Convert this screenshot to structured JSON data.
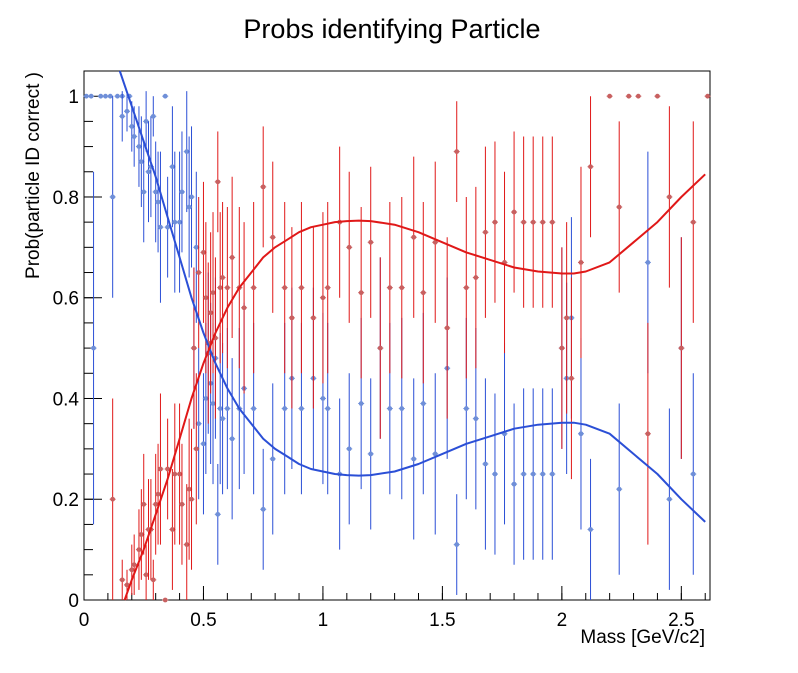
{
  "chart_data": {
    "type": "scatter",
    "title": "Probs identifying Particle",
    "xlabel": "Mass [GeV/c2]",
    "ylabel": "Prob(particle ID correct )",
    "xlim": [
      0,
      2.62
    ],
    "ylim": [
      0,
      1.05
    ],
    "x_ticks": [
      "0",
      "0.5",
      "1",
      "1.5",
      "2",
      "2.5"
    ],
    "y_ticks": [
      "0",
      "0.2",
      "0.4",
      "0.6",
      "0.8",
      "1"
    ],
    "grid": false,
    "legend": "none",
    "series": [
      {
        "color": "#2b4fd6",
        "marker_color": "#6f8fd8",
        "points": [
          {
            "x": 0.01,
            "y": 1.0,
            "err": 0.0
          },
          {
            "x": 0.03,
            "y": 1.0,
            "err": 0.0
          },
          {
            "x": 0.04,
            "y": 0.5,
            "err": 0.35
          },
          {
            "x": 0.07,
            "y": 1.0,
            "err": 0.0
          },
          {
            "x": 0.09,
            "y": 1.0,
            "err": 0.0
          },
          {
            "x": 0.11,
            "y": 1.0,
            "err": 0.0
          },
          {
            "x": 0.12,
            "y": 0.8,
            "err": 0.2
          },
          {
            "x": 0.14,
            "y": 1.0,
            "err": 0.0
          },
          {
            "x": 0.16,
            "y": 1.0,
            "err": 0.0
          },
          {
            "x": 0.16,
            "y": 0.96,
            "err": 0.05
          },
          {
            "x": 0.18,
            "y": 0.97,
            "err": 0.04
          },
          {
            "x": 0.19,
            "y": 1.0,
            "err": 0.0
          },
          {
            "x": 0.2,
            "y": 0.94,
            "err": 0.05
          },
          {
            "x": 0.21,
            "y": 0.92,
            "err": 0.06
          },
          {
            "x": 0.23,
            "y": 0.9,
            "err": 0.08
          },
          {
            "x": 0.24,
            "y": 0.87,
            "err": 0.09
          },
          {
            "x": 0.25,
            "y": 0.81,
            "err": 0.1
          },
          {
            "x": 0.26,
            "y": 0.95,
            "err": 0.06
          },
          {
            "x": 0.27,
            "y": 0.85,
            "err": 0.1
          },
          {
            "x": 0.28,
            "y": 0.86,
            "err": 0.1
          },
          {
            "x": 0.29,
            "y": 0.96,
            "err": 0.04
          },
          {
            "x": 0.3,
            "y": 0.81,
            "err": 0.1
          },
          {
            "x": 0.31,
            "y": 0.79,
            "err": 0.1
          },
          {
            "x": 0.32,
            "y": 0.74,
            "err": 0.15
          },
          {
            "x": 0.34,
            "y": 1.0,
            "err": 0.0
          },
          {
            "x": 0.35,
            "y": 0.74,
            "err": 0.1
          },
          {
            "x": 0.37,
            "y": 0.86,
            "err": 0.12
          },
          {
            "x": 0.38,
            "y": 0.75,
            "err": 0.14
          },
          {
            "x": 0.4,
            "y": 0.75,
            "err": 0.14
          },
          {
            "x": 0.41,
            "y": 0.81,
            "err": 0.12
          },
          {
            "x": 0.43,
            "y": 0.89,
            "err": 0.12
          },
          {
            "x": 0.45,
            "y": 0.8,
            "err": 0.14
          },
          {
            "x": 0.44,
            "y": 0.78,
            "err": 0.14
          },
          {
            "x": 0.46,
            "y": 0.5,
            "err": 0.16
          },
          {
            "x": 0.47,
            "y": 0.7,
            "err": 0.15
          },
          {
            "x": 0.48,
            "y": 0.35,
            "err": 0.15
          },
          {
            "x": 0.5,
            "y": 0.31,
            "err": 0.14
          },
          {
            "x": 0.51,
            "y": 0.4,
            "err": 0.15
          },
          {
            "x": 0.52,
            "y": 0.49,
            "err": 0.16
          },
          {
            "x": 0.53,
            "y": 0.43,
            "err": 0.16
          },
          {
            "x": 0.54,
            "y": 0.39,
            "err": 0.16
          },
          {
            "x": 0.55,
            "y": 0.48,
            "err": 0.16
          },
          {
            "x": 0.56,
            "y": 0.17,
            "err": 0.1
          },
          {
            "x": 0.57,
            "y": 0.38,
            "err": 0.15
          },
          {
            "x": 0.58,
            "y": 0.36,
            "err": 0.15
          },
          {
            "x": 0.6,
            "y": 0.38,
            "err": 0.16
          },
          {
            "x": 0.62,
            "y": 0.32,
            "err": 0.16
          },
          {
            "x": 0.65,
            "y": 0.38,
            "err": 0.16
          },
          {
            "x": 0.67,
            "y": 0.42,
            "err": 0.17
          },
          {
            "x": 0.71,
            "y": 0.38,
            "err": 0.17
          },
          {
            "x": 0.75,
            "y": 0.18,
            "err": 0.12
          },
          {
            "x": 0.79,
            "y": 0.28,
            "err": 0.15
          },
          {
            "x": 0.84,
            "y": 0.38,
            "err": 0.17
          },
          {
            "x": 0.87,
            "y": 0.44,
            "err": 0.18
          },
          {
            "x": 0.91,
            "y": 0.38,
            "err": 0.17
          },
          {
            "x": 0.96,
            "y": 0.44,
            "err": 0.18
          },
          {
            "x": 1.0,
            "y": 0.4,
            "err": 0.17
          },
          {
            "x": 1.02,
            "y": 0.38,
            "err": 0.17
          },
          {
            "x": 1.07,
            "y": 0.25,
            "err": 0.15
          },
          {
            "x": 1.11,
            "y": 0.3,
            "err": 0.15
          },
          {
            "x": 1.16,
            "y": 0.39,
            "err": 0.17
          },
          {
            "x": 1.2,
            "y": 0.29,
            "err": 0.15
          },
          {
            "x": 1.24,
            "y": 0.5,
            "err": 0.18
          },
          {
            "x": 1.28,
            "y": 0.38,
            "err": 0.17
          },
          {
            "x": 1.33,
            "y": 0.38,
            "err": 0.18
          },
          {
            "x": 1.38,
            "y": 0.28,
            "err": 0.16
          },
          {
            "x": 1.42,
            "y": 0.39,
            "err": 0.18
          },
          {
            "x": 1.47,
            "y": 0.29,
            "err": 0.16
          },
          {
            "x": 1.52,
            "y": 0.46,
            "err": 0.18
          },
          {
            "x": 1.56,
            "y": 0.11,
            "err": 0.1
          },
          {
            "x": 1.6,
            "y": 0.38,
            "err": 0.18
          },
          {
            "x": 1.64,
            "y": 0.36,
            "err": 0.18
          },
          {
            "x": 1.68,
            "y": 0.27,
            "err": 0.17
          },
          {
            "x": 1.72,
            "y": 0.25,
            "err": 0.16
          },
          {
            "x": 1.76,
            "y": 0.33,
            "err": 0.18
          },
          {
            "x": 1.8,
            "y": 0.23,
            "err": 0.16
          },
          {
            "x": 1.84,
            "y": 0.25,
            "err": 0.17
          },
          {
            "x": 1.88,
            "y": 0.25,
            "err": 0.17
          },
          {
            "x": 1.92,
            "y": 0.25,
            "err": 0.17
          },
          {
            "x": 1.96,
            "y": 0.25,
            "err": 0.17
          },
          {
            "x": 2.0,
            "y": 0.5,
            "err": 0.2
          },
          {
            "x": 2.02,
            "y": 0.44,
            "err": 0.19
          },
          {
            "x": 2.04,
            "y": 0.56,
            "err": 0.2
          },
          {
            "x": 2.08,
            "y": 0.33,
            "err": 0.19
          },
          {
            "x": 2.12,
            "y": 0.14,
            "err": 0.14
          },
          {
            "x": 2.24,
            "y": 0.22,
            "err": 0.17
          },
          {
            "x": 2.36,
            "y": 0.67,
            "err": 0.22
          },
          {
            "x": 2.45,
            "y": 0.2,
            "err": 0.18
          },
          {
            "x": 2.5,
            "y": 0.5,
            "err": 0.22
          },
          {
            "x": 2.55,
            "y": 0.25,
            "err": 0.2
          }
        ],
        "curve_x": [
          0.15,
          0.2,
          0.25,
          0.3,
          0.35,
          0.4,
          0.45,
          0.5,
          0.55,
          0.6,
          0.65,
          0.7,
          0.75,
          0.8,
          0.85,
          0.9,
          0.95,
          1.0,
          1.05,
          1.1,
          1.15,
          1.2,
          1.3,
          1.4,
          1.5,
          1.6,
          1.7,
          1.8,
          1.9,
          2.0,
          2.05,
          2.1,
          2.2,
          2.3,
          2.4,
          2.5,
          2.6
        ],
        "curve_y": [
          1.05,
          0.98,
          0.91,
          0.84,
          0.76,
          0.68,
          0.6,
          0.53,
          0.47,
          0.42,
          0.38,
          0.35,
          0.32,
          0.3,
          0.285,
          0.27,
          0.26,
          0.255,
          0.25,
          0.248,
          0.247,
          0.248,
          0.255,
          0.27,
          0.29,
          0.31,
          0.325,
          0.34,
          0.348,
          0.352,
          0.352,
          0.348,
          0.33,
          0.29,
          0.25,
          0.2,
          0.155
        ]
      },
      {
        "color": "#e01818",
        "marker_color": "#c86060",
        "points": [
          {
            "x": 0.12,
            "y": 0.2,
            "err": 0.2
          },
          {
            "x": 0.16,
            "y": 0.04,
            "err": 0.04
          },
          {
            "x": 0.18,
            "y": 0.03,
            "err": 0.03
          },
          {
            "x": 0.2,
            "y": 0.06,
            "err": 0.05
          },
          {
            "x": 0.21,
            "y": 0.07,
            "err": 0.06
          },
          {
            "x": 0.23,
            "y": 0.1,
            "err": 0.08
          },
          {
            "x": 0.24,
            "y": 0.13,
            "err": 0.09
          },
          {
            "x": 0.25,
            "y": 0.19,
            "err": 0.1
          },
          {
            "x": 0.26,
            "y": 0.05,
            "err": 0.06
          },
          {
            "x": 0.27,
            "y": 0.14,
            "err": 0.1
          },
          {
            "x": 0.28,
            "y": 0.14,
            "err": 0.1
          },
          {
            "x": 0.29,
            "y": 0.04,
            "err": 0.04
          },
          {
            "x": 0.3,
            "y": 0.19,
            "err": 0.1
          },
          {
            "x": 0.31,
            "y": 0.21,
            "err": 0.1
          },
          {
            "x": 0.32,
            "y": 0.26,
            "err": 0.15
          },
          {
            "x": 0.34,
            "y": 0.0,
            "err": 0.0
          },
          {
            "x": 0.35,
            "y": 0.26,
            "err": 0.1
          },
          {
            "x": 0.37,
            "y": 0.14,
            "err": 0.12
          },
          {
            "x": 0.38,
            "y": 0.25,
            "err": 0.14
          },
          {
            "x": 0.4,
            "y": 0.25,
            "err": 0.14
          },
          {
            "x": 0.41,
            "y": 0.19,
            "err": 0.12
          },
          {
            "x": 0.43,
            "y": 0.11,
            "err": 0.12
          },
          {
            "x": 0.44,
            "y": 0.22,
            "err": 0.14
          },
          {
            "x": 0.45,
            "y": 0.2,
            "err": 0.14
          },
          {
            "x": 0.46,
            "y": 0.5,
            "err": 0.16
          },
          {
            "x": 0.47,
            "y": 0.3,
            "err": 0.15
          },
          {
            "x": 0.48,
            "y": 0.65,
            "err": 0.15
          },
          {
            "x": 0.5,
            "y": 0.69,
            "err": 0.14
          },
          {
            "x": 0.51,
            "y": 0.6,
            "err": 0.15
          },
          {
            "x": 0.52,
            "y": 0.51,
            "err": 0.16
          },
          {
            "x": 0.53,
            "y": 0.57,
            "err": 0.16
          },
          {
            "x": 0.54,
            "y": 0.61,
            "err": 0.16
          },
          {
            "x": 0.55,
            "y": 0.52,
            "err": 0.16
          },
          {
            "x": 0.56,
            "y": 0.83,
            "err": 0.1
          },
          {
            "x": 0.57,
            "y": 0.62,
            "err": 0.15
          },
          {
            "x": 0.58,
            "y": 0.64,
            "err": 0.15
          },
          {
            "x": 0.6,
            "y": 0.62,
            "err": 0.16
          },
          {
            "x": 0.62,
            "y": 0.68,
            "err": 0.16
          },
          {
            "x": 0.65,
            "y": 0.62,
            "err": 0.16
          },
          {
            "x": 0.67,
            "y": 0.58,
            "err": 0.17
          },
          {
            "x": 0.71,
            "y": 0.62,
            "err": 0.17
          },
          {
            "x": 0.75,
            "y": 0.82,
            "err": 0.12
          },
          {
            "x": 0.79,
            "y": 0.72,
            "err": 0.15
          },
          {
            "x": 0.84,
            "y": 0.62,
            "err": 0.17
          },
          {
            "x": 0.87,
            "y": 0.56,
            "err": 0.18
          },
          {
            "x": 0.91,
            "y": 0.62,
            "err": 0.17
          },
          {
            "x": 0.96,
            "y": 0.56,
            "err": 0.18
          },
          {
            "x": 1.0,
            "y": 0.6,
            "err": 0.17
          },
          {
            "x": 1.02,
            "y": 0.62,
            "err": 0.17
          },
          {
            "x": 1.07,
            "y": 0.75,
            "err": 0.15
          },
          {
            "x": 1.11,
            "y": 0.7,
            "err": 0.15
          },
          {
            "x": 1.16,
            "y": 0.61,
            "err": 0.17
          },
          {
            "x": 1.2,
            "y": 0.71,
            "err": 0.15
          },
          {
            "x": 1.24,
            "y": 0.5,
            "err": 0.18
          },
          {
            "x": 1.28,
            "y": 0.62,
            "err": 0.17
          },
          {
            "x": 1.33,
            "y": 0.62,
            "err": 0.18
          },
          {
            "x": 1.38,
            "y": 0.72,
            "err": 0.16
          },
          {
            "x": 1.42,
            "y": 0.61,
            "err": 0.18
          },
          {
            "x": 1.47,
            "y": 0.71,
            "err": 0.16
          },
          {
            "x": 1.52,
            "y": 0.54,
            "err": 0.18
          },
          {
            "x": 1.56,
            "y": 0.89,
            "err": 0.1
          },
          {
            "x": 1.6,
            "y": 0.62,
            "err": 0.18
          },
          {
            "x": 1.64,
            "y": 0.64,
            "err": 0.18
          },
          {
            "x": 1.68,
            "y": 0.73,
            "err": 0.17
          },
          {
            "x": 1.72,
            "y": 0.75,
            "err": 0.16
          },
          {
            "x": 1.76,
            "y": 0.67,
            "err": 0.18
          },
          {
            "x": 1.8,
            "y": 0.77,
            "err": 0.16
          },
          {
            "x": 1.84,
            "y": 0.75,
            "err": 0.17
          },
          {
            "x": 1.88,
            "y": 0.75,
            "err": 0.17
          },
          {
            "x": 1.92,
            "y": 0.75,
            "err": 0.17
          },
          {
            "x": 1.96,
            "y": 0.75,
            "err": 0.17
          },
          {
            "x": 2.0,
            "y": 0.5,
            "err": 0.2
          },
          {
            "x": 2.02,
            "y": 0.56,
            "err": 0.19
          },
          {
            "x": 2.04,
            "y": 0.44,
            "err": 0.2
          },
          {
            "x": 2.08,
            "y": 0.67,
            "err": 0.19
          },
          {
            "x": 2.12,
            "y": 0.86,
            "err": 0.14
          },
          {
            "x": 2.2,
            "y": 1.0,
            "err": 0.0
          },
          {
            "x": 2.24,
            "y": 0.78,
            "err": 0.17
          },
          {
            "x": 2.28,
            "y": 1.0,
            "err": 0.0
          },
          {
            "x": 2.32,
            "y": 1.0,
            "err": 0.0
          },
          {
            "x": 2.36,
            "y": 0.33,
            "err": 0.22
          },
          {
            "x": 2.4,
            "y": 1.0,
            "err": 0.0
          },
          {
            "x": 2.45,
            "y": 0.8,
            "err": 0.18
          },
          {
            "x": 2.5,
            "y": 0.5,
            "err": 0.22
          },
          {
            "x": 2.55,
            "y": 0.75,
            "err": 0.2
          },
          {
            "x": 2.61,
            "y": 1.0,
            "err": 0.0
          }
        ],
        "curve_x": [
          0.17,
          0.2,
          0.25,
          0.3,
          0.35,
          0.4,
          0.45,
          0.5,
          0.55,
          0.6,
          0.65,
          0.7,
          0.75,
          0.8,
          0.85,
          0.9,
          0.95,
          1.0,
          1.05,
          1.1,
          1.15,
          1.2,
          1.3,
          1.4,
          1.5,
          1.6,
          1.7,
          1.8,
          1.9,
          2.0,
          2.05,
          2.1,
          2.2,
          2.3,
          2.4,
          2.5,
          2.6
        ],
        "curve_y": [
          0.0,
          0.04,
          0.1,
          0.17,
          0.24,
          0.32,
          0.4,
          0.47,
          0.53,
          0.58,
          0.62,
          0.65,
          0.68,
          0.7,
          0.715,
          0.73,
          0.74,
          0.745,
          0.75,
          0.752,
          0.753,
          0.752,
          0.745,
          0.73,
          0.71,
          0.69,
          0.675,
          0.66,
          0.652,
          0.648,
          0.648,
          0.652,
          0.67,
          0.71,
          0.75,
          0.8,
          0.845
        ]
      }
    ]
  }
}
